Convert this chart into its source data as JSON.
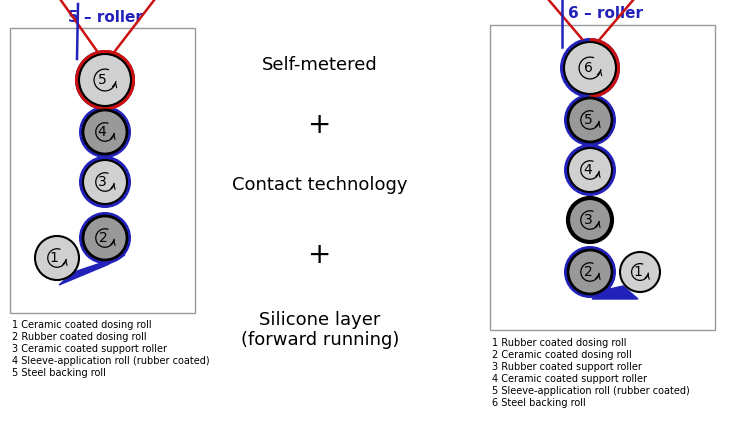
{
  "left_title": "5 – roller",
  "right_title": "6 – roller",
  "center_texts": [
    "Self-metered",
    "+",
    "Contact technology",
    "+",
    "Silicone layer\n(forward running)"
  ],
  "left_legend": [
    "1 Ceramic coated dosing roll",
    "2 Rubber coated dosing roll",
    "3 Ceramic coated support roller",
    "4 Sleeve-application roll (rubber coated)",
    "5 Steel backing roll"
  ],
  "right_legend": [
    "1 Rubber coated dosing roll",
    "2 Ceramic coated dosing roll",
    "3 Rubber coated support roller",
    "4 Ceramic coated support roller",
    "5 Sleeve-application roll (rubber coated)",
    "6 Steel backing roll"
  ],
  "bg_color": "#ffffff",
  "roller_light_gray": "#d0d0d0",
  "roller_dark_gray": "#999999",
  "blue_color": "#2222bb",
  "red_color": "#cc1111"
}
